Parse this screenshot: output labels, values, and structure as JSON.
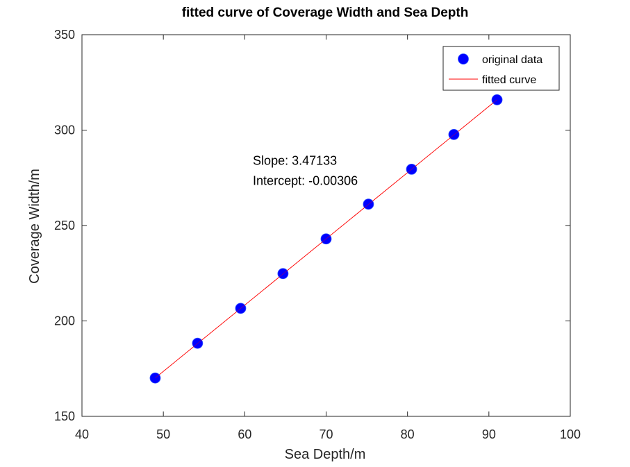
{
  "chart_data": {
    "type": "scatter",
    "title": "fitted curve of Coverage Width and Sea Depth",
    "xlabel": "Sea Depth/m",
    "ylabel": "Coverage Width/m",
    "xlim": [
      40,
      100
    ],
    "ylim": [
      150,
      350
    ],
    "xticks": [
      40,
      50,
      60,
      70,
      80,
      90,
      100
    ],
    "yticks": [
      150,
      200,
      250,
      300,
      350
    ],
    "grid": false,
    "legend_position": "top-right",
    "series": [
      {
        "name": "original data",
        "kind": "scatter",
        "color": "#0000ff",
        "x": [
          49.0,
          54.2,
          59.5,
          64.7,
          70.0,
          75.2,
          80.5,
          85.7,
          91.0
        ],
        "y": [
          170.1,
          188.3,
          206.6,
          224.8,
          243.0,
          261.2,
          279.5,
          297.7,
          315.9
        ]
      },
      {
        "name": "fitted curve",
        "kind": "line",
        "color": "#ff0000",
        "x": [
          49.0,
          91.0
        ],
        "y": [
          170.1,
          315.9
        ]
      }
    ],
    "annotations": [
      {
        "text": "Slope: 3.47133",
        "x": 61,
        "y": 284
      },
      {
        "text": "Intercept: -0.00306",
        "x": 61,
        "y": 273.5
      }
    ]
  }
}
